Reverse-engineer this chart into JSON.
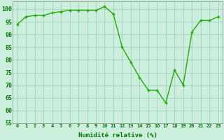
{
  "x": [
    0,
    1,
    2,
    3,
    4,
    5,
    6,
    7,
    8,
    9,
    10,
    11,
    12,
    13,
    14,
    15,
    16,
    17,
    18,
    19,
    20,
    21,
    22,
    23
  ],
  "y": [
    94,
    97,
    97.5,
    97.5,
    98.5,
    99,
    99.5,
    99.5,
    99.5,
    99.5,
    101,
    98,
    85,
    79,
    73,
    68,
    68,
    63,
    76,
    70,
    91,
    95.5,
    95.5,
    97
  ],
  "line_color": "#22aa00",
  "marker_color": "#22aa00",
  "bg_color": "#cceedd",
  "grid_color": "#99ccbb",
  "xlabel": "Humidité relative (%)",
  "ylim": [
    55,
    103
  ],
  "xlim": [
    -0.5,
    23.5
  ],
  "yticks": [
    55,
    60,
    65,
    70,
    75,
    80,
    85,
    90,
    95,
    100
  ],
  "xticks": [
    0,
    1,
    2,
    3,
    4,
    5,
    6,
    7,
    8,
    9,
    10,
    11,
    12,
    13,
    14,
    15,
    16,
    17,
    18,
    19,
    20,
    21,
    22,
    23
  ],
  "xlabel_color": "#007700",
  "tick_color": "#007700",
  "xlabel_fontsize": 6.5,
  "ytick_fontsize": 6,
  "xtick_fontsize": 5,
  "linewidth": 1.0,
  "markersize": 2.5,
  "marker": "+"
}
